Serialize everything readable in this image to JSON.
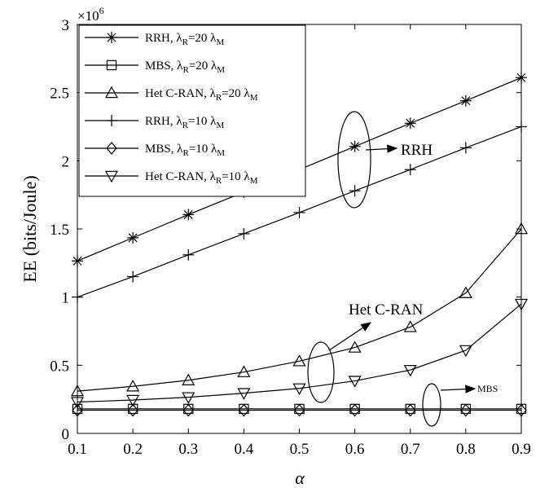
{
  "chart_data": {
    "type": "line",
    "xlabel": "α",
    "ylabel": "EE (bits/Joule)",
    "y_multiplier": "×10",
    "y_multiplier_exp": "6",
    "xlim": [
      0.1,
      0.9
    ],
    "ylim": [
      0,
      3000000
    ],
    "x_ticks": [
      0.1,
      0.2,
      0.3,
      0.4,
      0.5,
      0.6,
      0.7,
      0.8,
      0.9
    ],
    "x_tick_labels": [
      "0.1",
      "0.2",
      "0.3",
      "0.4",
      "0.5",
      "0.6",
      "0.7",
      "0.8",
      "0.9"
    ],
    "y_ticks": [
      0,
      500000,
      1000000,
      1500000,
      2000000,
      2500000,
      3000000
    ],
    "y_tick_labels": [
      "0",
      "0.5",
      "1",
      "1.5",
      "2",
      "2.5",
      "3"
    ],
    "grid": false,
    "legend_position": "top-left",
    "x": [
      0.1,
      0.2,
      0.3,
      0.4,
      0.5,
      0.6,
      0.7,
      0.8,
      0.9
    ],
    "series": [
      {
        "name": "RRH, λR=20 λM",
        "base": "RRH,  λ",
        "mid": "=20 λ",
        "marker": "asterisk",
        "values": [
          1265000,
          1435000,
          1605000,
          1770000,
          1935000,
          2105000,
          2275000,
          2440000,
          2610000
        ]
      },
      {
        "name": "MBS, λR=20 λM",
        "base": "MBS,  λ",
        "mid": "=20 λ",
        "marker": "square",
        "values": [
          180000,
          180000,
          180000,
          180000,
          180000,
          180000,
          180000,
          180000,
          180000
        ]
      },
      {
        "name": "Het C-RAN, λR=20 λM",
        "base": "Het C-RAN,  λ",
        "mid": "=20 λ",
        "marker": "triangle-up",
        "values": [
          310000,
          345000,
          390000,
          450000,
          530000,
          630000,
          780000,
          1030000,
          1500000
        ]
      },
      {
        "name": "RRH, λR=10 λM",
        "base": "RRH,  λ",
        "mid": "=10 λ",
        "marker": "plus",
        "values": [
          1000000,
          1150000,
          1310000,
          1465000,
          1620000,
          1780000,
          1935000,
          2095000,
          2250000
        ]
      },
      {
        "name": "MBS, λR=10 λM",
        "base": "MBS,  λ",
        "mid": "=10 λ",
        "marker": "diamond",
        "values": [
          170000,
          170000,
          170000,
          170000,
          170000,
          170000,
          170000,
          170000,
          170000
        ]
      },
      {
        "name": "Het C-RAN, λR=10 λM",
        "base": "Het C-RAN,  λ",
        "mid": "=10 λ",
        "marker": "triangle-down",
        "values": [
          230000,
          245000,
          265000,
          295000,
          330000,
          385000,
          465000,
          610000,
          950000
        ]
      }
    ],
    "annotations": {
      "rrh": "RRH",
      "het": "Het C-RAN",
      "mbs": "MBS"
    }
  },
  "legend": {
    "sub_r": "R",
    "sub_m": "M"
  }
}
